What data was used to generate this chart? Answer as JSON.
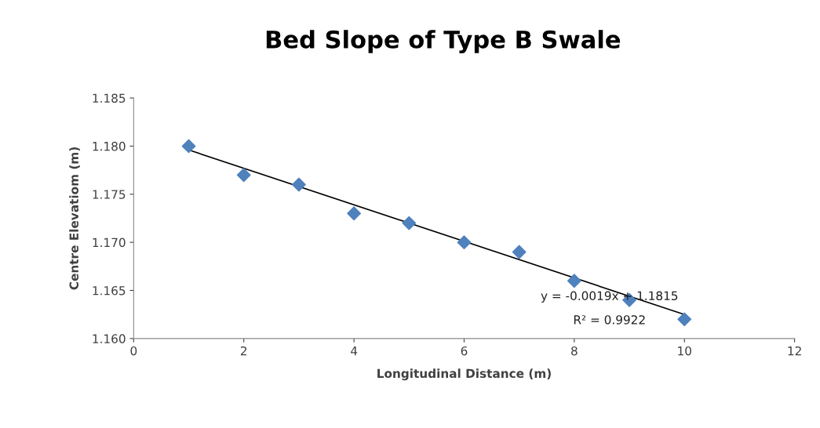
{
  "chart_data": {
    "type": "scatter",
    "title": "Bed Slope of Type B Swale",
    "xlabel": "Longitudinal Distance (m)",
    "ylabel": "Centre Elevatiom (m)",
    "x": [
      1,
      2,
      3,
      4,
      5,
      6,
      7,
      8,
      9,
      10
    ],
    "series": [
      {
        "color": "#4f81bd",
        "marker": "diamond",
        "values": [
          1.18,
          1.177,
          1.176,
          1.173,
          1.172,
          1.17,
          1.169,
          1.166,
          1.164,
          1.162
        ]
      },
      {
        "type": "line",
        "color": "#000000",
        "marker": "none",
        "line_style": "solid",
        "x": [
          1,
          10
        ],
        "values": [
          1.1796,
          1.1625
        ]
      }
    ],
    "xlim": [
      0,
      12
    ],
    "xticks": [
      0,
      2,
      4,
      6,
      8,
      10,
      12
    ],
    "ylim": [
      1.16,
      1.185
    ],
    "yticks": [
      {
        "value": 1.16,
        "label": "1.160"
      },
      {
        "value": 1.165,
        "label": "1.165"
      },
      {
        "value": 1.17,
        "label": "1.170"
      },
      {
        "value": 1.175,
        "label": "1.175"
      },
      {
        "value": 1.18,
        "label": "1.180"
      },
      {
        "value": 1.185,
        "label": "1.185"
      }
    ],
    "annotations": [
      "y = -0.0019x + 1.1815",
      "R² = 0.9922"
    ],
    "grid": false,
    "legend": false
  }
}
